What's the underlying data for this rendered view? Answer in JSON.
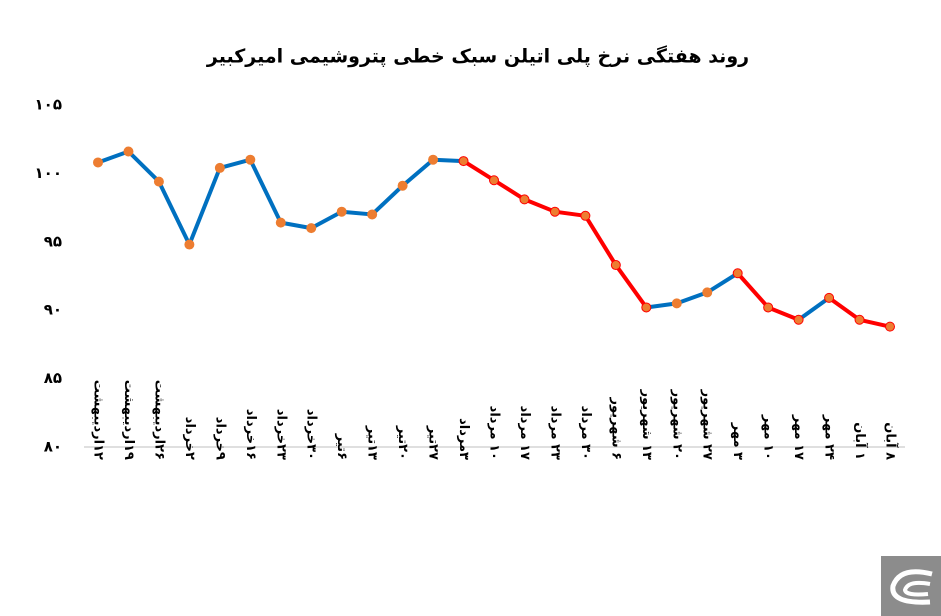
{
  "chart_data": {
    "type": "line",
    "title": "روند هفتگی نرخ پلی اتیلن سبک خطی پتروشیمی امیرکبیر",
    "categories": [
      "۱۲اردیبهشت",
      "۱۹اردیبهشت",
      "۲۶اردیبهشت",
      "۲خرداد",
      "۹خرداد",
      "۱۶خرداد",
      "۲۳خرداد",
      "۳۰خرداد",
      "۶تیر",
      "۱۳تیر",
      "۲۰تیر",
      "۲۷تیر",
      "۳مرداد",
      "۱۰ مرداد",
      "۱۷ مرداد",
      "۲۳ مرداد",
      "۳۰ مرداد",
      "۶ شهریور",
      "۱۳ شهریور",
      "۲۰ شهریور",
      "۲۷ شهریور",
      "۳ مهر",
      "۱۰ مهر",
      "۱۷ مهر",
      "۲۴ مهر",
      "۱ آبان",
      "۸ آبان"
    ],
    "values": [
      100.8,
      101.6,
      99.4,
      94.8,
      100.4,
      101.0,
      96.4,
      96.0,
      97.2,
      97.0,
      99.1,
      101.0,
      100.9,
      99.5,
      98.1,
      97.2,
      96.9,
      93.3,
      90.2,
      90.5,
      91.3,
      92.7,
      90.2,
      89.3,
      90.9,
      89.3,
      88.8
    ],
    "marker_color": "#ed7d31",
    "segment_colors": [
      "#0070c0",
      "#0070c0",
      "#0070c0",
      "#0070c0",
      "#0070c0",
      "#0070c0",
      "#0070c0",
      "#0070c0",
      "#0070c0",
      "#0070c0",
      "#0070c0",
      "#0070c0",
      "#ff0000",
      "#ff0000",
      "#ff0000",
      "#ff0000",
      "#ff0000",
      "#ff0000",
      "#0070c0",
      "#0070c0",
      "#0070c0",
      "#ff0000",
      "#ff0000",
      "#0070c0",
      "#ff0000",
      "#ff0000"
    ],
    "ylim": [
      80,
      105
    ],
    "yticks": [
      {
        "value": 80,
        "label": "۸۰"
      },
      {
        "value": 85,
        "label": "۸۵"
      },
      {
        "value": 90,
        "label": "۹۰"
      },
      {
        "value": 95,
        "label": "۹۵"
      },
      {
        "value": 100,
        "label": "۱۰۰"
      },
      {
        "value": 105,
        "label": "۱۰۵"
      }
    ]
  }
}
